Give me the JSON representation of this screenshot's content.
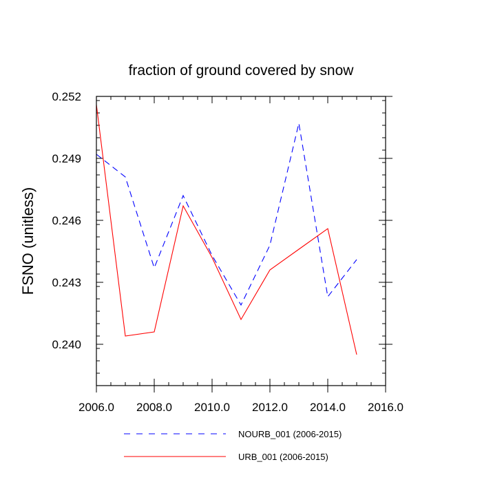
{
  "chart_data": {
    "type": "line",
    "title": "fraction of ground covered by snow",
    "xlabel": "",
    "ylabel": "FSNO  (unitless)",
    "xlim": [
      2006,
      2016
    ],
    "ylim": [
      0.238,
      0.252
    ],
    "xticks": [
      2006,
      2008,
      2010,
      2012,
      2014,
      2016
    ],
    "xtick_labels": [
      "2006.0",
      "2008.0",
      "2010.0",
      "2012.0",
      "2014.0",
      "2016.0"
    ],
    "yticks": [
      0.24,
      0.243,
      0.246,
      0.249,
      0.252
    ],
    "ytick_labels": [
      "0.240",
      "0.243",
      "0.246",
      "0.249",
      "0.252"
    ],
    "grid": false,
    "legend_position": "bottom",
    "x": [
      2006,
      2007,
      2008,
      2009,
      2010,
      2011,
      2012,
      2013,
      2014,
      2015
    ],
    "series": [
      {
        "name": "NOURB_001 (2006-2015)",
        "color": "#0000ff",
        "dash": "dashed",
        "values": [
          0.2492,
          0.2481,
          0.2437,
          0.2472,
          0.2443,
          0.2419,
          0.2448,
          0.2507,
          0.2423,
          0.2441
        ]
      },
      {
        "name": "URB_001 (2006-2015)",
        "color": "#ff0000",
        "dash": "solid",
        "values": [
          0.2516,
          0.2404,
          0.2406,
          0.2467,
          0.2442,
          0.2412,
          0.2436,
          0.2446,
          0.2456,
          0.2395
        ]
      }
    ]
  }
}
